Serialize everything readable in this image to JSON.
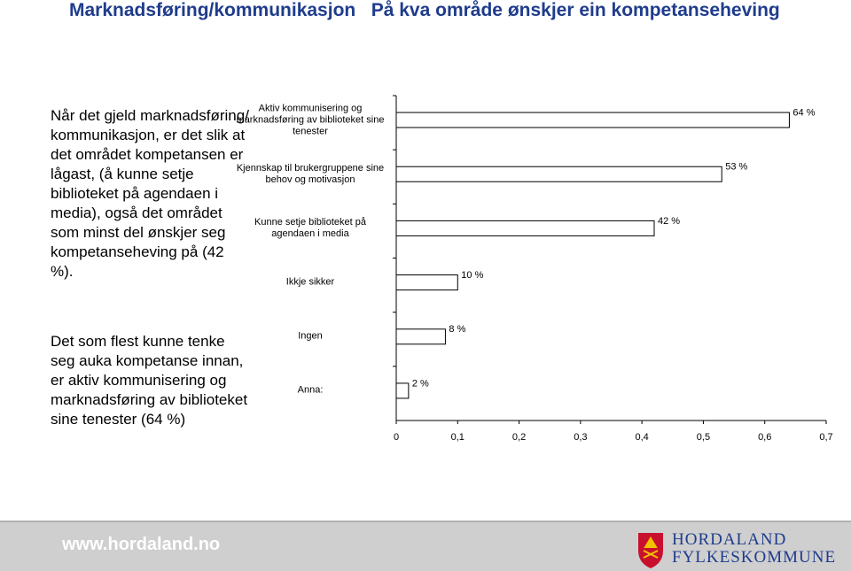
{
  "title": "Marknadsføring/kommunikasjon   På kva område ønskjer ein kompetanseheving",
  "paragraphs": [
    "Når det gjeld marknadsføring/ kommunikasjon, er det slik at det området kompetansen er lågast, (å kunne setje biblioteket på agendaen i media), også det området som minst del ønskjer seg kompetanseheving på (42 %).",
    "Det som flest kunne tenke seg auka kompetanse innan, er aktiv kommunisering og marknadsføring av biblioteket sine tenester (64 %)"
  ],
  "chart_data": {
    "type": "hbar",
    "categories": [
      "Aktiv kommunisering og marknadsføring av biblioteket sine tenester",
      "Kjennskap til brukergruppene sine behov og motivasjon",
      "Kunne setje biblioteket på agendaen i media",
      "Ikkje sikker",
      "Ingen",
      "Anna:"
    ],
    "values": [
      0.64,
      0.53,
      0.42,
      0.1,
      0.08,
      0.02
    ],
    "value_labels": [
      "64 %",
      "53 %",
      "42 %",
      "10 %",
      "8 %",
      "2 %"
    ],
    "color": "#ffffff",
    "xlim": [
      0,
      0.7
    ],
    "xticks": [
      0,
      {
        "value": 0.1,
        "label": "0,1"
      },
      {
        "value": 0.2,
        "label": "0,2"
      },
      {
        "value": 0.3,
        "label": "0,3"
      },
      {
        "value": 0.4,
        "label": "0,4"
      },
      {
        "value": 0.5,
        "label": "0,5"
      },
      {
        "value": 0.6,
        "label": "0,6"
      },
      {
        "value": 0.7,
        "label": "0,7"
      }
    ]
  },
  "footer": {
    "url": "www.hordaland.no",
    "org_line1": "HORDALAND",
    "org_line2": "FYLKESKOMMUNE"
  }
}
